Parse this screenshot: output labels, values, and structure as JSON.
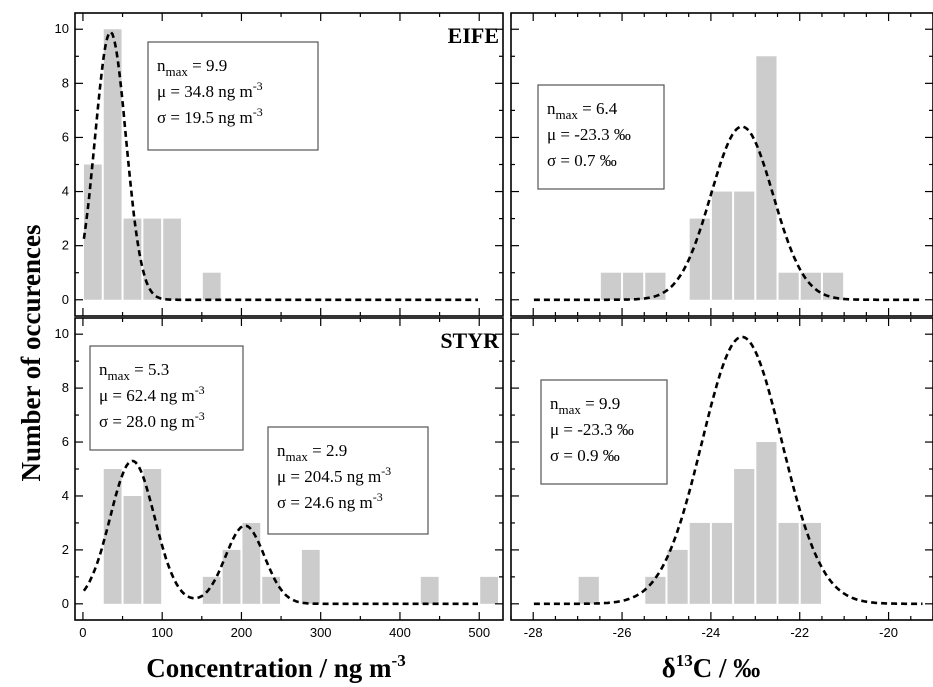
{
  "figure": {
    "ylabel": "Number of occurences",
    "xlabel_left": "Concentration / ng m",
    "xlabel_left_sup": "-3",
    "xlabel_right_pre": "δ",
    "xlabel_right_sup": "13",
    "xlabel_right_post": "C / ‰"
  },
  "chart_data": [
    {
      "id": "eife_conc",
      "type": "bar",
      "panel_label": "EIFE",
      "xlim": [
        -10,
        530
      ],
      "ylim": [
        -0.6,
        10.6
      ],
      "xticks": [],
      "yticks": [
        0,
        2,
        4,
        6,
        8,
        10
      ],
      "bin_width": 25,
      "bins": [
        {
          "x0": 0,
          "count": 5
        },
        {
          "x0": 25,
          "count": 10
        },
        {
          "x0": 50,
          "count": 3
        },
        {
          "x0": 75,
          "count": 3
        },
        {
          "x0": 100,
          "count": 3
        },
        {
          "x0": 150,
          "count": 1
        }
      ],
      "fits": [
        {
          "nmax": 9.9,
          "mu": 34.8,
          "sigma": 19.5
        }
      ],
      "annotations": [
        {
          "lines": [
            {
              "pre": "n",
              "sub": "max",
              "post": " = 9.9"
            },
            {
              "pre": "μ = 34.8 ng m",
              "sup": "-3"
            },
            {
              "pre": "σ = 19.5 ng m",
              "sup": "-3"
            }
          ]
        }
      ]
    },
    {
      "id": "eife_d13c",
      "type": "bar",
      "panel_label": "",
      "xlim": [
        -28.5,
        -19.0
      ],
      "ylim": [
        -0.6,
        10.6
      ],
      "xticks": [],
      "yticks": [],
      "bin_width": 0.5,
      "bins": [
        {
          "x0": -26.5,
          "count": 1
        },
        {
          "x0": -26.0,
          "count": 1
        },
        {
          "x0": -25.5,
          "count": 1
        },
        {
          "x0": -24.5,
          "count": 3
        },
        {
          "x0": -24.0,
          "count": 4
        },
        {
          "x0": -23.5,
          "count": 4
        },
        {
          "x0": -23.0,
          "count": 9
        },
        {
          "x0": -22.5,
          "count": 1
        },
        {
          "x0": -22.0,
          "count": 1
        },
        {
          "x0": -21.5,
          "count": 1
        }
      ],
      "fits": [
        {
          "nmax": 6.4,
          "mu": -23.3,
          "sigma": 0.7
        }
      ],
      "annotations": [
        {
          "lines": [
            {
              "pre": "n",
              "sub": "max",
              "post": " = 6.4"
            },
            {
              "pre": "μ = -23.3 ‰"
            },
            {
              "pre": "σ = 0.7 ‰"
            }
          ]
        }
      ]
    },
    {
      "id": "styr_conc",
      "type": "bar",
      "panel_label": "STYR",
      "xlim": [
        -10,
        530
      ],
      "ylim": [
        -0.6,
        10.6
      ],
      "xticks": [
        0,
        100,
        200,
        300,
        400,
        500
      ],
      "yticks": [
        0,
        2,
        4,
        6,
        8,
        10
      ],
      "bin_width": 25,
      "bins": [
        {
          "x0": 25,
          "count": 5
        },
        {
          "x0": 50,
          "count": 4
        },
        {
          "x0": 75,
          "count": 5
        },
        {
          "x0": 150,
          "count": 1
        },
        {
          "x0": 175,
          "count": 2
        },
        {
          "x0": 200,
          "count": 3
        },
        {
          "x0": 225,
          "count": 1
        },
        {
          "x0": 275,
          "count": 2
        },
        {
          "x0": 425,
          "count": 1
        },
        {
          "x0": 500,
          "count": 1
        }
      ],
      "fits": [
        {
          "nmax": 5.3,
          "mu": 62.4,
          "sigma": 28.0
        },
        {
          "nmax": 2.9,
          "mu": 204.5,
          "sigma": 24.6
        }
      ],
      "annotations": [
        {
          "lines": [
            {
              "pre": "n",
              "sub": "max",
              "post": " = 5.3"
            },
            {
              "pre": "μ = 62.4 ng m",
              "sup": "-3"
            },
            {
              "pre": "σ = 28.0 ng m",
              "sup": "-3"
            }
          ]
        },
        {
          "lines": [
            {
              "pre": "n",
              "sub": "max",
              "post": " = 2.9"
            },
            {
              "pre": "μ = 204.5 ng m",
              "sup": "-3"
            },
            {
              "pre": "σ = 24.6 ng m",
              "sup": "-3"
            }
          ]
        }
      ]
    },
    {
      "id": "styr_d13c",
      "type": "bar",
      "panel_label": "",
      "xlim": [
        -28.5,
        -19.0
      ],
      "ylim": [
        -0.6,
        10.6
      ],
      "xticks": [
        -28,
        -26,
        -24,
        -22,
        -20
      ],
      "yticks": [],
      "bin_width": 0.5,
      "bins": [
        {
          "x0": -27.0,
          "count": 1
        },
        {
          "x0": -25.5,
          "count": 1
        },
        {
          "x0": -25.0,
          "count": 2
        },
        {
          "x0": -24.5,
          "count": 3
        },
        {
          "x0": -24.0,
          "count": 3
        },
        {
          "x0": -23.5,
          "count": 5
        },
        {
          "x0": -23.0,
          "count": 6
        },
        {
          "x0": -22.5,
          "count": 3
        },
        {
          "x0": -22.0,
          "count": 3
        }
      ],
      "fits": [
        {
          "nmax": 9.9,
          "mu": -23.3,
          "sigma": 0.9
        }
      ],
      "annotations": [
        {
          "lines": [
            {
              "pre": "n",
              "sub": "max",
              "post": " = 9.9"
            },
            {
              "pre": "μ = -23.3 ‰"
            },
            {
              "pre": "σ = 0.9 ‰"
            }
          ]
        }
      ]
    }
  ],
  "colors": {
    "bar_fill": "#cccccc",
    "fit_line": "#000000",
    "axis": "#000000"
  }
}
